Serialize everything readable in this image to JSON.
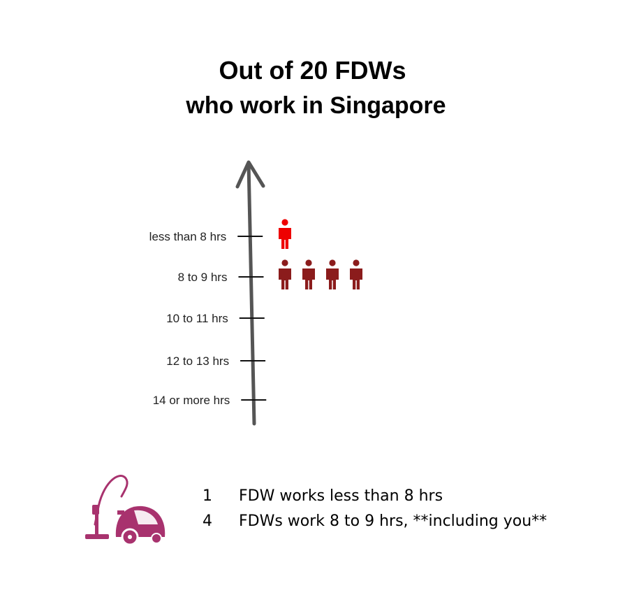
{
  "title": {
    "line1": "Out of 20 FDWs",
    "line2": "who work in Singapore"
  },
  "chart_data": {
    "type": "pictograph",
    "title": "Out of 20 FDWs who work in Singapore",
    "categories": [
      "less than 8 hrs",
      "8 to 9 hrs",
      "10 to 11 hrs",
      "12 to 13 hrs",
      "14 or more hrs"
    ],
    "values": [
      1,
      4,
      0,
      0,
      0
    ],
    "colors": [
      "#ee0000",
      "#8b1c1c",
      "#8b1c1c",
      "#8b1c1c",
      "#8b1c1c"
    ],
    "icon": "person-icon",
    "axis_direction": "up"
  },
  "legend_icon": "vacuum-cleaner-icon",
  "legend_icon_color": "#a8326e",
  "summary": [
    {
      "count": "1",
      "text": "FDW works less than 8 hrs"
    },
    {
      "count": "4",
      "text": "FDWs work 8 to 9 hrs, **including you**"
    }
  ]
}
